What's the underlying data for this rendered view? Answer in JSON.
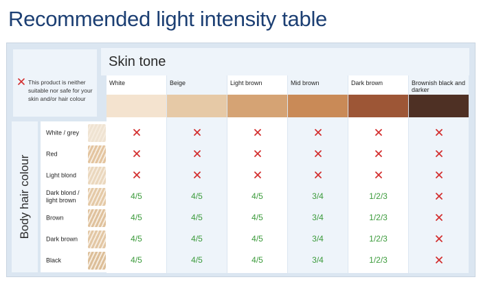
{
  "title": "Recommended light intensity table",
  "legend": {
    "text": "This product is neither suitable nor safe for your skin and/or hair colour"
  },
  "skin_tone_header": "Skin tone",
  "body_hair_header": "Body hair colour",
  "skin_tones": [
    {
      "name": "White",
      "color": "#f4e3cf"
    },
    {
      "name": "Beige",
      "color": "#e6c9a6"
    },
    {
      "name": "Light brown",
      "color": "#d5a374"
    },
    {
      "name": "Mid brown",
      "color": "#c98a57"
    },
    {
      "name": "Dark brown",
      "color": "#9d5636"
    },
    {
      "name": "Brownish black and darker",
      "color": "#4e3024"
    }
  ],
  "hair_colours": [
    {
      "name": "White / grey",
      "swatch_color": "#efe3d2"
    },
    {
      "name": "Red",
      "swatch_color": "#e3c49f"
    },
    {
      "name": "Light blond",
      "swatch_color": "#ead7bd"
    },
    {
      "name": "Dark blond / light brown",
      "swatch_color": "#e4c9a6"
    },
    {
      "name": "Brown",
      "swatch_color": "#dfc19c"
    },
    {
      "name": "Dark brown",
      "swatch_color": "#e2c6a3"
    },
    {
      "name": "Black",
      "swatch_color": "#dcbe98"
    }
  ],
  "cells": [
    [
      "x",
      "x",
      "x",
      "x",
      "x",
      "x"
    ],
    [
      "x",
      "x",
      "x",
      "x",
      "x",
      "x"
    ],
    [
      "x",
      "x",
      "x",
      "x",
      "x",
      "x"
    ],
    [
      "4/5",
      "4/5",
      "4/5",
      "3/4",
      "1/2/3",
      "x"
    ],
    [
      "4/5",
      "4/5",
      "4/5",
      "3/4",
      "1/2/3",
      "x"
    ],
    [
      "4/5",
      "4/5",
      "4/5",
      "3/4",
      "1/2/3",
      "x"
    ],
    [
      "4/5",
      "4/5",
      "4/5",
      "3/4",
      "1/2/3",
      "x"
    ]
  ],
  "colors": {
    "title": "#1c3f73",
    "cross": "#d32f2f",
    "intensity": "#3a9a3a",
    "panel": "#dbe6f1",
    "light_band": "#eef4fa"
  },
  "icons": {
    "not_suitable": "cross-icon"
  }
}
